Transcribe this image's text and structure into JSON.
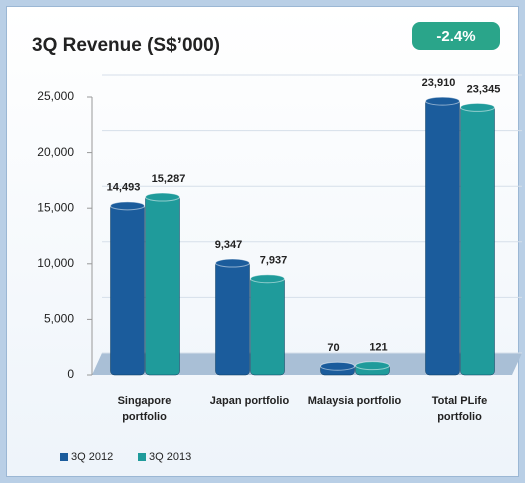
{
  "chart_data": {
    "type": "bar",
    "title": "3Q Revenue (S$’000)",
    "annotation": "-2.4%",
    "categories": [
      "Singapore portfolio",
      "Japan portfolio",
      "Malaysia portfolio",
      "Total PLife portfolio"
    ],
    "series": [
      {
        "name": "3Q 2012",
        "color": "#1b5c9c",
        "values": [
          14493,
          9347,
          70,
          23910
        ],
        "value_labels": [
          "14,493",
          "9,347",
          "70",
          "23,910"
        ]
      },
      {
        "name": "3Q 2013",
        "color": "#1f9b9b",
        "values": [
          15287,
          7937,
          121,
          23345
        ],
        "value_labels": [
          "15,287",
          "7,937",
          "121",
          "23,345"
        ]
      }
    ],
    "ylim": [
      0,
      25000
    ],
    "yticks": [
      0,
      {
        "value": 5000,
        "label": "5,000"
      },
      {
        "value": 10000,
        "label": "10,000"
      },
      {
        "value": 15000,
        "label": "15,000"
      },
      {
        "value": 20000,
        "label": "20,000"
      },
      {
        "value": 25000,
        "label": "25,000"
      }
    ],
    "grid": true,
    "legend": "bottom-left"
  }
}
